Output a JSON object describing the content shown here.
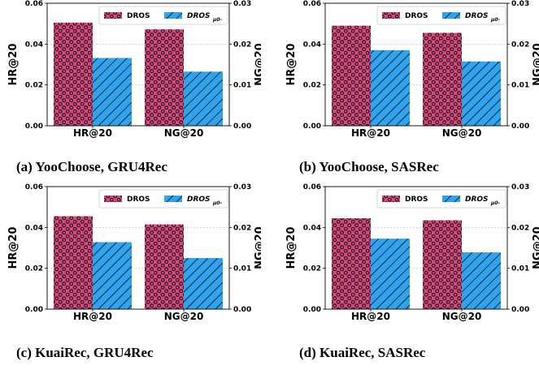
{
  "colors": {
    "dros": "#d9487f",
    "dros_dots": "#111111",
    "variant": "#2fa3ee",
    "variant_hatch": "#111111",
    "grid": "#bbbbbb"
  },
  "chart_data": [
    {
      "type": "bar",
      "caption": "(a) YooChoose, GRU4Rec",
      "categories": [
        "HR@20",
        "NG@20"
      ],
      "left_axis": {
        "label": "HR@20",
        "lim": [
          0,
          0.06
        ],
        "ticks": [
          "0.00",
          "0.02",
          "0.04",
          "0.06"
        ]
      },
      "right_axis": {
        "label": "NG@20",
        "lim": [
          0,
          0.03
        ],
        "ticks": [
          "0.00",
          "0.01",
          "0.02",
          "0.03"
        ]
      },
      "series": [
        {
          "name": "DROS",
          "values": [
            0.0505,
            0.0472
          ]
        },
        {
          "name": "DROS",
          "name_sub": "μ0-",
          "values": [
            0.0332,
            0.0265
          ]
        }
      ],
      "grid": true,
      "legend": "top"
    },
    {
      "type": "bar",
      "caption": "(b) YooChoose, SASRec",
      "categories": [
        "HR@20",
        "NG@20"
      ],
      "left_axis": {
        "label": "HR@20",
        "lim": [
          0,
          0.06
        ],
        "ticks": [
          "0.00",
          "0.02",
          "0.04",
          "0.06"
        ]
      },
      "right_axis": {
        "label": "NG@20",
        "lim": [
          0,
          0.03
        ],
        "ticks": [
          "0.00",
          "0.01",
          "0.02",
          "0.03"
        ]
      },
      "series": [
        {
          "name": "DROS",
          "values": [
            0.049,
            0.0455
          ]
        },
        {
          "name": "DROS",
          "name_sub": "μ0-",
          "values": [
            0.037,
            0.0315
          ]
        }
      ],
      "grid": true,
      "legend": "top"
    },
    {
      "type": "bar",
      "caption": "(c) KuaiRec, GRU4Rec",
      "categories": [
        "HR@20",
        "NG@20"
      ],
      "left_axis": {
        "label": "HR@20",
        "lim": [
          0,
          0.06
        ],
        "ticks": [
          "0.00",
          "0.02",
          "0.04",
          "0.06"
        ]
      },
      "right_axis": {
        "label": "NG@20",
        "lim": [
          0,
          0.03
        ],
        "ticks": [
          "0.00",
          "0.01",
          "0.02",
          "0.03"
        ]
      },
      "series": [
        {
          "name": "DROS",
          "values": [
            0.0455,
            0.0415
          ]
        },
        {
          "name": "DROS",
          "name_sub": "μ0-",
          "values": [
            0.0328,
            0.025
          ]
        }
      ],
      "grid": true,
      "legend": "top"
    },
    {
      "type": "bar",
      "caption": "(d) KuaiRec, SASRec",
      "categories": [
        "HR@20",
        "NG@20"
      ],
      "left_axis": {
        "label": "HR@20",
        "lim": [
          0,
          0.06
        ],
        "ticks": [
          "0.00",
          "0.02",
          "0.04",
          "0.06"
        ]
      },
      "right_axis": {
        "label": "NG@20",
        "lim": [
          0,
          0.03
        ],
        "ticks": [
          "0.00",
          "0.01",
          "0.02",
          "0.03"
        ]
      },
      "series": [
        {
          "name": "DROS",
          "values": [
            0.0445,
            0.0435
          ]
        },
        {
          "name": "DROS",
          "name_sub": "μ0-",
          "values": [
            0.0345,
            0.0278
          ]
        }
      ],
      "grid": true,
      "legend": "top"
    }
  ]
}
